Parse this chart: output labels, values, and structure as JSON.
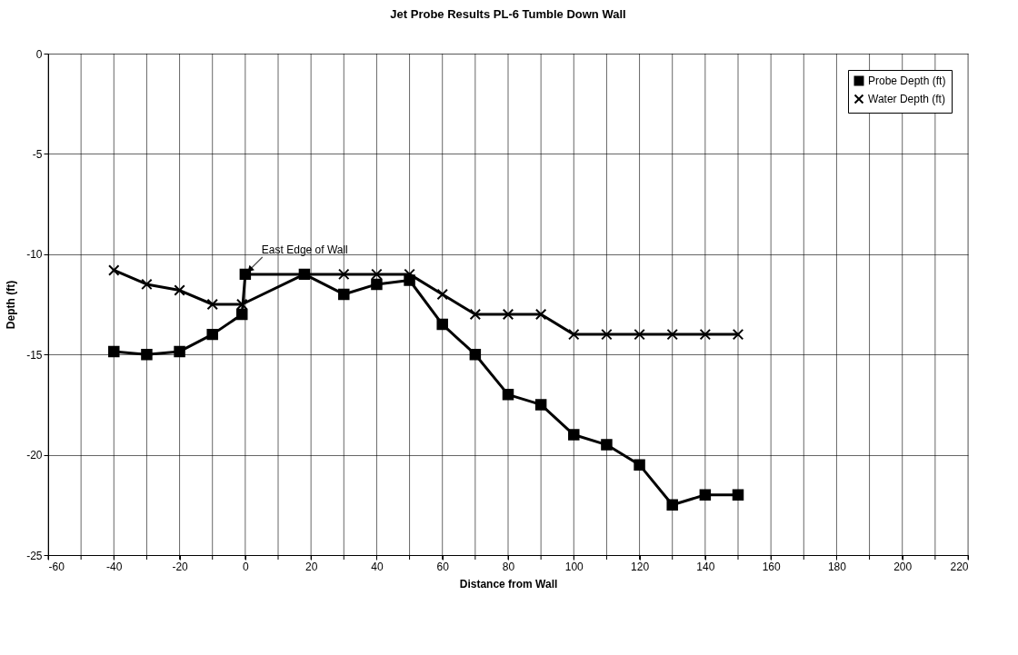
{
  "chart_data": {
    "type": "line",
    "title": "Jet Probe Results PL-6 Tumble Down Wall",
    "xlabel": "Distance from Wall",
    "ylabel": "Depth (ft)",
    "xlim": [
      -60,
      220
    ],
    "ylim": [
      -25,
      0
    ],
    "xticks": [
      -60,
      {
        "value": -50,
        "label": null
      },
      -40,
      {
        "value": -30,
        "label": null
      },
      -20,
      {
        "value": -10,
        "label": null
      },
      0,
      {
        "value": 10,
        "label": null
      },
      20,
      {
        "value": 30,
        "label": null
      },
      40,
      {
        "value": 50,
        "label": null
      },
      60,
      {
        "value": 70,
        "label": null
      },
      80,
      {
        "value": 90,
        "label": null
      },
      100,
      {
        "value": 110,
        "label": null
      },
      120,
      {
        "value": 130,
        "label": null
      },
      140,
      {
        "value": 150,
        "label": null
      },
      160,
      {
        "value": 170,
        "label": null
      },
      180,
      {
        "value": 190,
        "label": null
      },
      200,
      {
        "value": 210,
        "label": null
      },
      220
    ],
    "yticks": [
      -25,
      -20,
      -15,
      -10,
      -5,
      0
    ],
    "grid": true,
    "legend": "top right",
    "line_style": "solid",
    "series": [
      {
        "name": "Probe Depth (ft)",
        "color": "#000000",
        "marker": "square",
        "x": [
          -40,
          -30,
          -20,
          -10,
          -1,
          0,
          18,
          30,
          40,
          50,
          60,
          70,
          80,
          90,
          100,
          110,
          120,
          130,
          140,
          150
        ],
        "values": [
          -14.85,
          -15,
          -14.85,
          -14,
          -13,
          -11,
          -11,
          -12,
          -11.5,
          -11.3,
          -13.5,
          -15,
          -17,
          -17.5,
          -19,
          -19.5,
          -20.5,
          -22.5,
          -22,
          -22
        ]
      },
      {
        "name": "Water Depth (ft)",
        "color": "#000000",
        "marker": "cross",
        "x": [
          -40,
          -30,
          -20,
          -10,
          -1,
          18,
          30,
          40,
          50,
          60,
          70,
          80,
          90,
          100,
          110,
          120,
          130,
          140,
          150
        ],
        "values": [
          -10.8,
          -11.5,
          -11.8,
          -12.5,
          -12.5,
          -11,
          -11,
          -11,
          -11,
          -12,
          -13,
          -13,
          -13,
          -14,
          -14,
          -14,
          -14,
          -14,
          -14
        ]
      }
    ],
    "annotations": [
      {
        "text": "East Edge of Wall",
        "x": 0,
        "y": -11
      }
    ]
  }
}
